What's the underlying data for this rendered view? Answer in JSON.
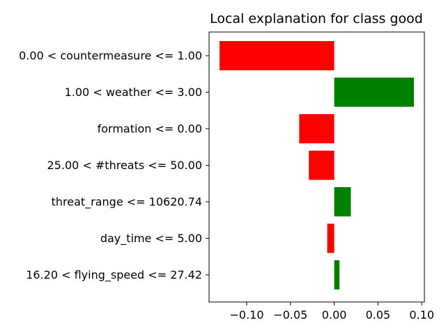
{
  "chart_data": {
    "type": "bar",
    "orientation": "horizontal",
    "title": "Local explanation for class good",
    "xlabel": "",
    "ylabel": "",
    "categories": [
      "0.00 < countermeasure <= 1.00",
      "1.00 < weather <= 3.00",
      "formation <= 0.00",
      "25.00 < #threats <= 50.00",
      "threat_range <= 10620.74",
      "day_time <= 5.00",
      "16.20 < flying_speed <= 27.42"
    ],
    "values": [
      -0.131,
      0.091,
      -0.04,
      -0.029,
      0.019,
      -0.008,
      0.006
    ],
    "xlim": [
      -0.143,
      0.103
    ],
    "xticks": [
      -0.1,
      -0.05,
      0.0,
      0.05,
      0.1
    ],
    "xtick_labels": [
      "−0.10",
      "−0.05",
      "0.00",
      "0.05",
      "0.10"
    ],
    "colors": {
      "positive": "#008000",
      "negative": "#ff0000"
    },
    "grid": false,
    "legend": "none"
  }
}
